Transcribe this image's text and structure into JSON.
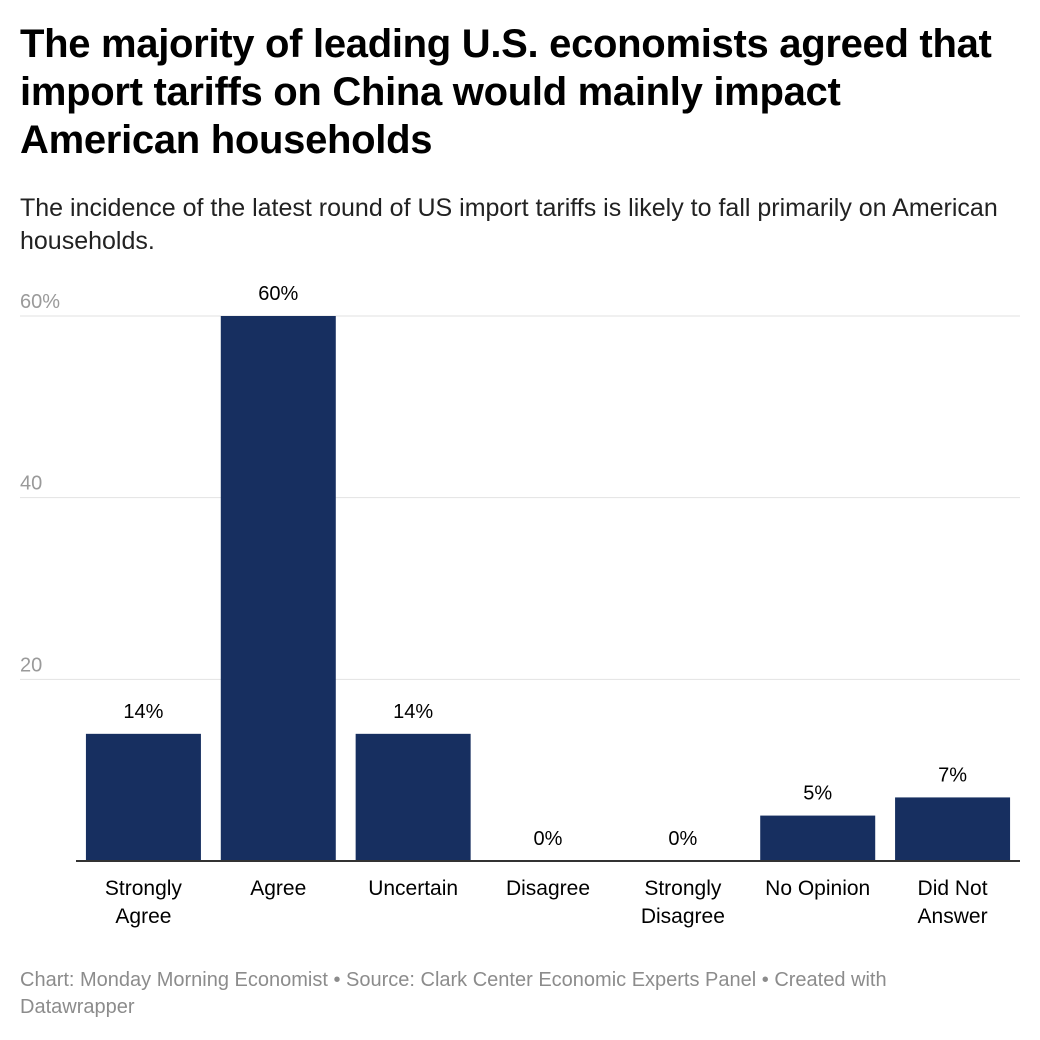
{
  "header": {
    "title": "The majority of leading U.S. economists agreed that import tariffs on China would mainly impact American households",
    "subtitle": "The incidence of the latest round of US import tariffs is likely to fall primarily on American households."
  },
  "footer": {
    "text": "Chart: Monday Morning Economist • Source: Clark Center Economic Experts Panel • Created with Datawrapper"
  },
  "colors": {
    "bar": "#172f60",
    "gridline": "#e2e2e2",
    "baseline": "#333333",
    "tick_label": "#9a9a9a",
    "text": "#000000"
  },
  "chart_data": {
    "type": "bar",
    "title": "The majority of leading U.S. economists agreed that import tariffs on China would mainly impact American households",
    "subtitle": "The incidence of the latest round of US import tariffs is likely to fall primarily on American households.",
    "categories": [
      [
        "Strongly",
        "Agree"
      ],
      [
        "Agree"
      ],
      [
        "Uncertain"
      ],
      [
        "Disagree"
      ],
      [
        "Strongly",
        "Disagree"
      ],
      [
        "No Opinion"
      ],
      [
        "Did Not",
        "Answer"
      ]
    ],
    "values": [
      14,
      60,
      14,
      0,
      0,
      5,
      7
    ],
    "value_labels": [
      "14%",
      "60%",
      "14%",
      "0%",
      "0%",
      "5%",
      "7%"
    ],
    "y_ticks": [
      {
        "value": 20,
        "label": "20"
      },
      {
        "value": 40,
        "label": "40"
      },
      {
        "value": 60,
        "label": "60%"
      }
    ],
    "ylim": [
      0,
      60
    ],
    "grid": true,
    "legend": "none"
  }
}
